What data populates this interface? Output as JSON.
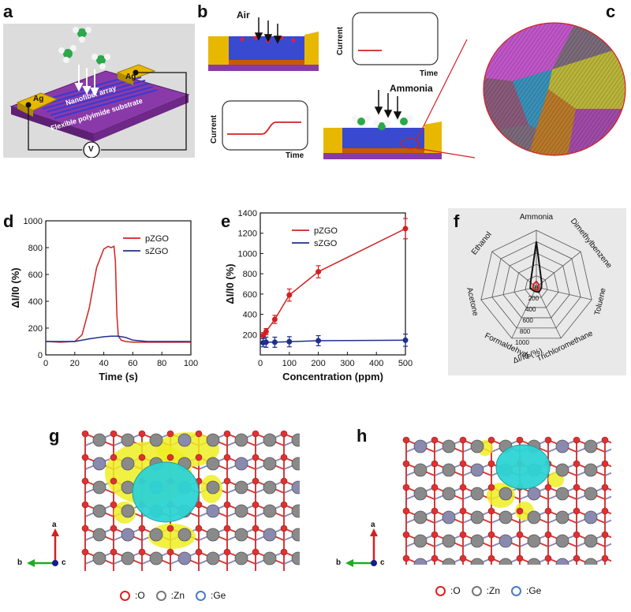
{
  "panels": {
    "a": {
      "letter": "a",
      "electrode_left": "Ag",
      "electrode_right": "Ag",
      "array_label": "Nanofiber array",
      "substrate_label": "Flexible polyimide substrate",
      "meter_label": "V"
    },
    "b": {
      "letter": "b",
      "air_label": "Air",
      "ammonia_label": "Ammonia",
      "current_label": "Current",
      "time_label": "Time"
    },
    "c": {
      "letter": "c"
    },
    "d": {
      "letter": "d"
    },
    "e": {
      "letter": "e"
    },
    "f": {
      "letter": "f"
    },
    "g": {
      "letter": "g"
    },
    "h": {
      "letter": "h"
    }
  },
  "lattice_legend": {
    "O": ":O",
    "Zn": ":Zn",
    "Ge": ":Ge"
  },
  "axes_labels": {
    "a": "a",
    "b": "b",
    "c": "c"
  },
  "colors": {
    "pZGO": "#d42020",
    "sZGO": "#1f2f8f",
    "isosurface_yellow": "#eeee22",
    "isosurface_cyan": "#2ed4d4"
  },
  "chart_data": [
    {
      "id": "d",
      "type": "line",
      "xlabel": "Time (s)",
      "ylabel": "ΔI/I0 (%)",
      "xlim": [
        0,
        100
      ],
      "ylim": [
        0,
        1000
      ],
      "xticks": [
        0,
        20,
        40,
        60,
        80,
        100
      ],
      "yticks": [
        0,
        200,
        400,
        600,
        800,
        1000
      ],
      "grid": false,
      "legend": "top-right",
      "series": [
        {
          "name": "pZGO",
          "x": [
            0,
            10,
            20,
            25,
            30,
            35,
            40,
            43,
            45,
            47,
            48,
            49,
            50,
            52,
            55,
            60,
            70,
            80,
            90,
            100
          ],
          "y": [
            100,
            95,
            100,
            150,
            350,
            650,
            790,
            810,
            800,
            810,
            700,
            300,
            140,
            110,
            100,
            95,
            95,
            95,
            95,
            95
          ]
        },
        {
          "name": "sZGO",
          "x": [
            0,
            10,
            20,
            30,
            40,
            45,
            50,
            55,
            60,
            70,
            80,
            90,
            100
          ],
          "y": [
            100,
            100,
            100,
            120,
            135,
            140,
            140,
            130,
            110,
            100,
            100,
            100,
            100
          ]
        }
      ]
    },
    {
      "id": "e",
      "type": "line",
      "xlabel": "Concentration (ppm)",
      "ylabel": "ΔI/I0 (%)",
      "xlim": [
        0,
        500
      ],
      "ylim": [
        0,
        1400
      ],
      "xticks": [
        0,
        100,
        200,
        300,
        400,
        500
      ],
      "yticks": [
        200,
        400,
        600,
        800,
        1000,
        1200,
        1400
      ],
      "grid": false,
      "legend": "top-left",
      "series": [
        {
          "name": "pZGO",
          "x": [
            10,
            20,
            50,
            100,
            200,
            500
          ],
          "y": [
            190,
            230,
            350,
            590,
            820,
            1245
          ],
          "err": [
            30,
            30,
            40,
            60,
            60,
            100
          ]
        },
        {
          "name": "sZGO",
          "x": [
            10,
            20,
            50,
            100,
            200,
            500
          ],
          "y": [
            120,
            125,
            125,
            130,
            140,
            145
          ],
          "err": [
            40,
            50,
            50,
            50,
            50,
            60
          ]
        }
      ]
    },
    {
      "id": "f",
      "type": "radar",
      "axis_title": "ΔI/I0 (%)",
      "categories": [
        "Ammonia",
        "Dimethylbenzene",
        "Toluene",
        "Trichloromethane",
        "Formaldehyde",
        "Acetone",
        "Ethanol"
      ],
      "rticks": [
        0,
        200,
        400,
        600,
        800,
        1000
      ],
      "rlim": [
        0,
        1000
      ],
      "series": [
        {
          "name": "pZGO",
          "values": [
            800,
            120,
            90,
            100,
            80,
            110,
            130
          ]
        },
        {
          "name": "sZGO",
          "values": [
            100,
            60,
            50,
            60,
            50,
            60,
            70
          ]
        }
      ]
    }
  ]
}
